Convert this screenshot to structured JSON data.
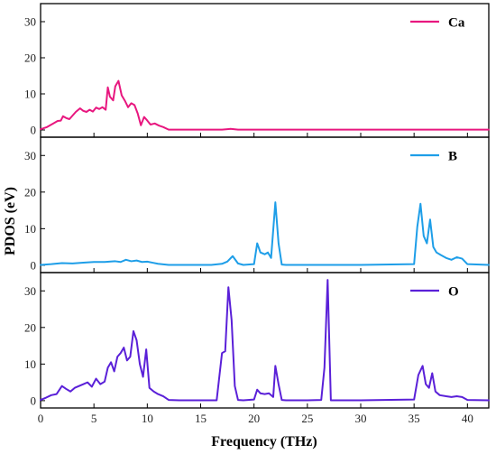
{
  "chart_data": {
    "type": "line",
    "xlabel": "Frequency (THz)",
    "ylabel": "PDOS (eV)",
    "xlim": [
      0,
      42
    ],
    "ylim": [
      -2,
      35
    ],
    "xticks": [
      0,
      5,
      10,
      15,
      20,
      25,
      30,
      35,
      40
    ],
    "yticks": [
      0,
      10,
      20,
      30
    ],
    "legend_position": "top-right",
    "grid": false,
    "panels": [
      {
        "name": "Ca",
        "color": "#e8177f",
        "series": [
          {
            "name": "Ca",
            "x": [
              0,
              0.6,
              1.2,
              1.6,
              1.9,
              2.1,
              2.4,
              2.7,
              3.0,
              3.3,
              3.7,
              4.0,
              4.3,
              4.6,
              4.9,
              5.2,
              5.5,
              5.8,
              6.1,
              6.3,
              6.5,
              6.8,
              7.0,
              7.3,
              7.6,
              7.9,
              8.2,
              8.5,
              8.8,
              9.1,
              9.4,
              9.7,
              10.0,
              10.3,
              10.7,
              11.1,
              11.5,
              12.0,
              13,
              15,
              17,
              17.8,
              18.5,
              20,
              25,
              30,
              35,
              40,
              42
            ],
            "y": [
              0.2,
              0.8,
              1.8,
              2.5,
              2.6,
              3.8,
              3.3,
              3.0,
              4.0,
              5.0,
              6.0,
              5.3,
              5.0,
              5.6,
              5.1,
              6.2,
              5.8,
              6.3,
              5.6,
              11.8,
              9.2,
              8.2,
              12.1,
              13.6,
              9.6,
              8.1,
              6.3,
              7.4,
              6.9,
              4.6,
              1.3,
              3.6,
              2.6,
              1.5,
              1.8,
              1.2,
              0.8,
              0.1,
              0.1,
              0.1,
              0.1,
              0.3,
              0.1,
              0.1,
              0.1,
              0.1,
              0.1,
              0.1,
              0.1
            ]
          }
        ]
      },
      {
        "name": "B",
        "color": "#1e9ee8",
        "series": [
          {
            "name": "B",
            "x": [
              0,
              1,
              2,
              3,
              4,
              5,
              6,
              7,
              7.5,
              8,
              8.5,
              9,
              9.5,
              10,
              10.5,
              11,
              12,
              14,
              16,
              17,
              17.5,
              18,
              18.5,
              19,
              20,
              20.3,
              20.6,
              21,
              21.3,
              21.6,
              22,
              22.3,
              22.6,
              23,
              25,
              30,
              35,
              35.3,
              35.6,
              35.9,
              36.2,
              36.5,
              36.8,
              37.1,
              37.5,
              38,
              38.5,
              39,
              39.5,
              40,
              42
            ],
            "y": [
              0.1,
              0.3,
              0.6,
              0.5,
              0.7,
              0.9,
              0.9,
              1.1,
              0.9,
              1.5,
              1.1,
              1.3,
              0.9,
              1.0,
              0.7,
              0.4,
              0.1,
              0.1,
              0.1,
              0.4,
              1.0,
              2.5,
              0.5,
              0.1,
              0.3,
              6.0,
              3.5,
              3.0,
              3.5,
              2.0,
              17.2,
              6.0,
              0.2,
              0.1,
              0.1,
              0.1,
              0.3,
              10.5,
              16.8,
              8.0,
              6.0,
              12.5,
              5.0,
              3.5,
              2.8,
              2.0,
              1.5,
              2.2,
              1.8,
              0.3,
              0.1
            ]
          }
        ]
      },
      {
        "name": "O",
        "color": "#5a20d8",
        "series": [
          {
            "name": "O",
            "x": [
              0,
              0.5,
              1,
              1.5,
              2,
              2.4,
              2.8,
              3.2,
              3.6,
              4,
              4.4,
              4.8,
              5.2,
              5.6,
              6,
              6.3,
              6.6,
              6.9,
              7.2,
              7.5,
              7.8,
              8.1,
              8.4,
              8.7,
              9.0,
              9.3,
              9.6,
              9.9,
              10.2,
              10.6,
              11,
              11.5,
              12,
              13,
              15,
              16.5,
              17,
              17.3,
              17.6,
              17.9,
              18.2,
              18.5,
              19,
              20,
              20.3,
              20.6,
              21,
              21.4,
              21.8,
              22.0,
              22.3,
              22.6,
              23,
              25,
              26.3,
              26.6,
              26.9,
              27.2,
              27.5,
              30,
              35,
              35.4,
              35.8,
              36.1,
              36.4,
              36.7,
              37.0,
              37.4,
              38,
              38.5,
              39,
              39.5,
              40,
              42
            ],
            "y": [
              0.2,
              0.8,
              1.5,
              1.8,
              4.0,
              3.2,
              2.5,
              3.5,
              4.0,
              4.5,
              5.0,
              3.8,
              6.0,
              4.5,
              5.2,
              9.0,
              10.5,
              8.0,
              12.0,
              13.0,
              14.5,
              11.0,
              12.0,
              19.0,
              16.5,
              10.0,
              6.5,
              14.0,
              3.5,
              2.5,
              1.8,
              1.2,
              0.2,
              0.1,
              0.1,
              0.1,
              13.0,
              13.5,
              31.0,
              22.0,
              4.0,
              0.2,
              0.1,
              0.3,
              3.0,
              2.0,
              1.8,
              2.0,
              1.0,
              9.5,
              4.5,
              0.2,
              0.1,
              0.1,
              0.2,
              9.0,
              33.0,
              0.1,
              0.1,
              0.1,
              0.3,
              7.0,
              9.5,
              4.5,
              3.5,
              7.5,
              2.5,
              1.5,
              1.2,
              1.0,
              1.2,
              1.0,
              0.2,
              0.1
            ]
          }
        ]
      }
    ]
  }
}
